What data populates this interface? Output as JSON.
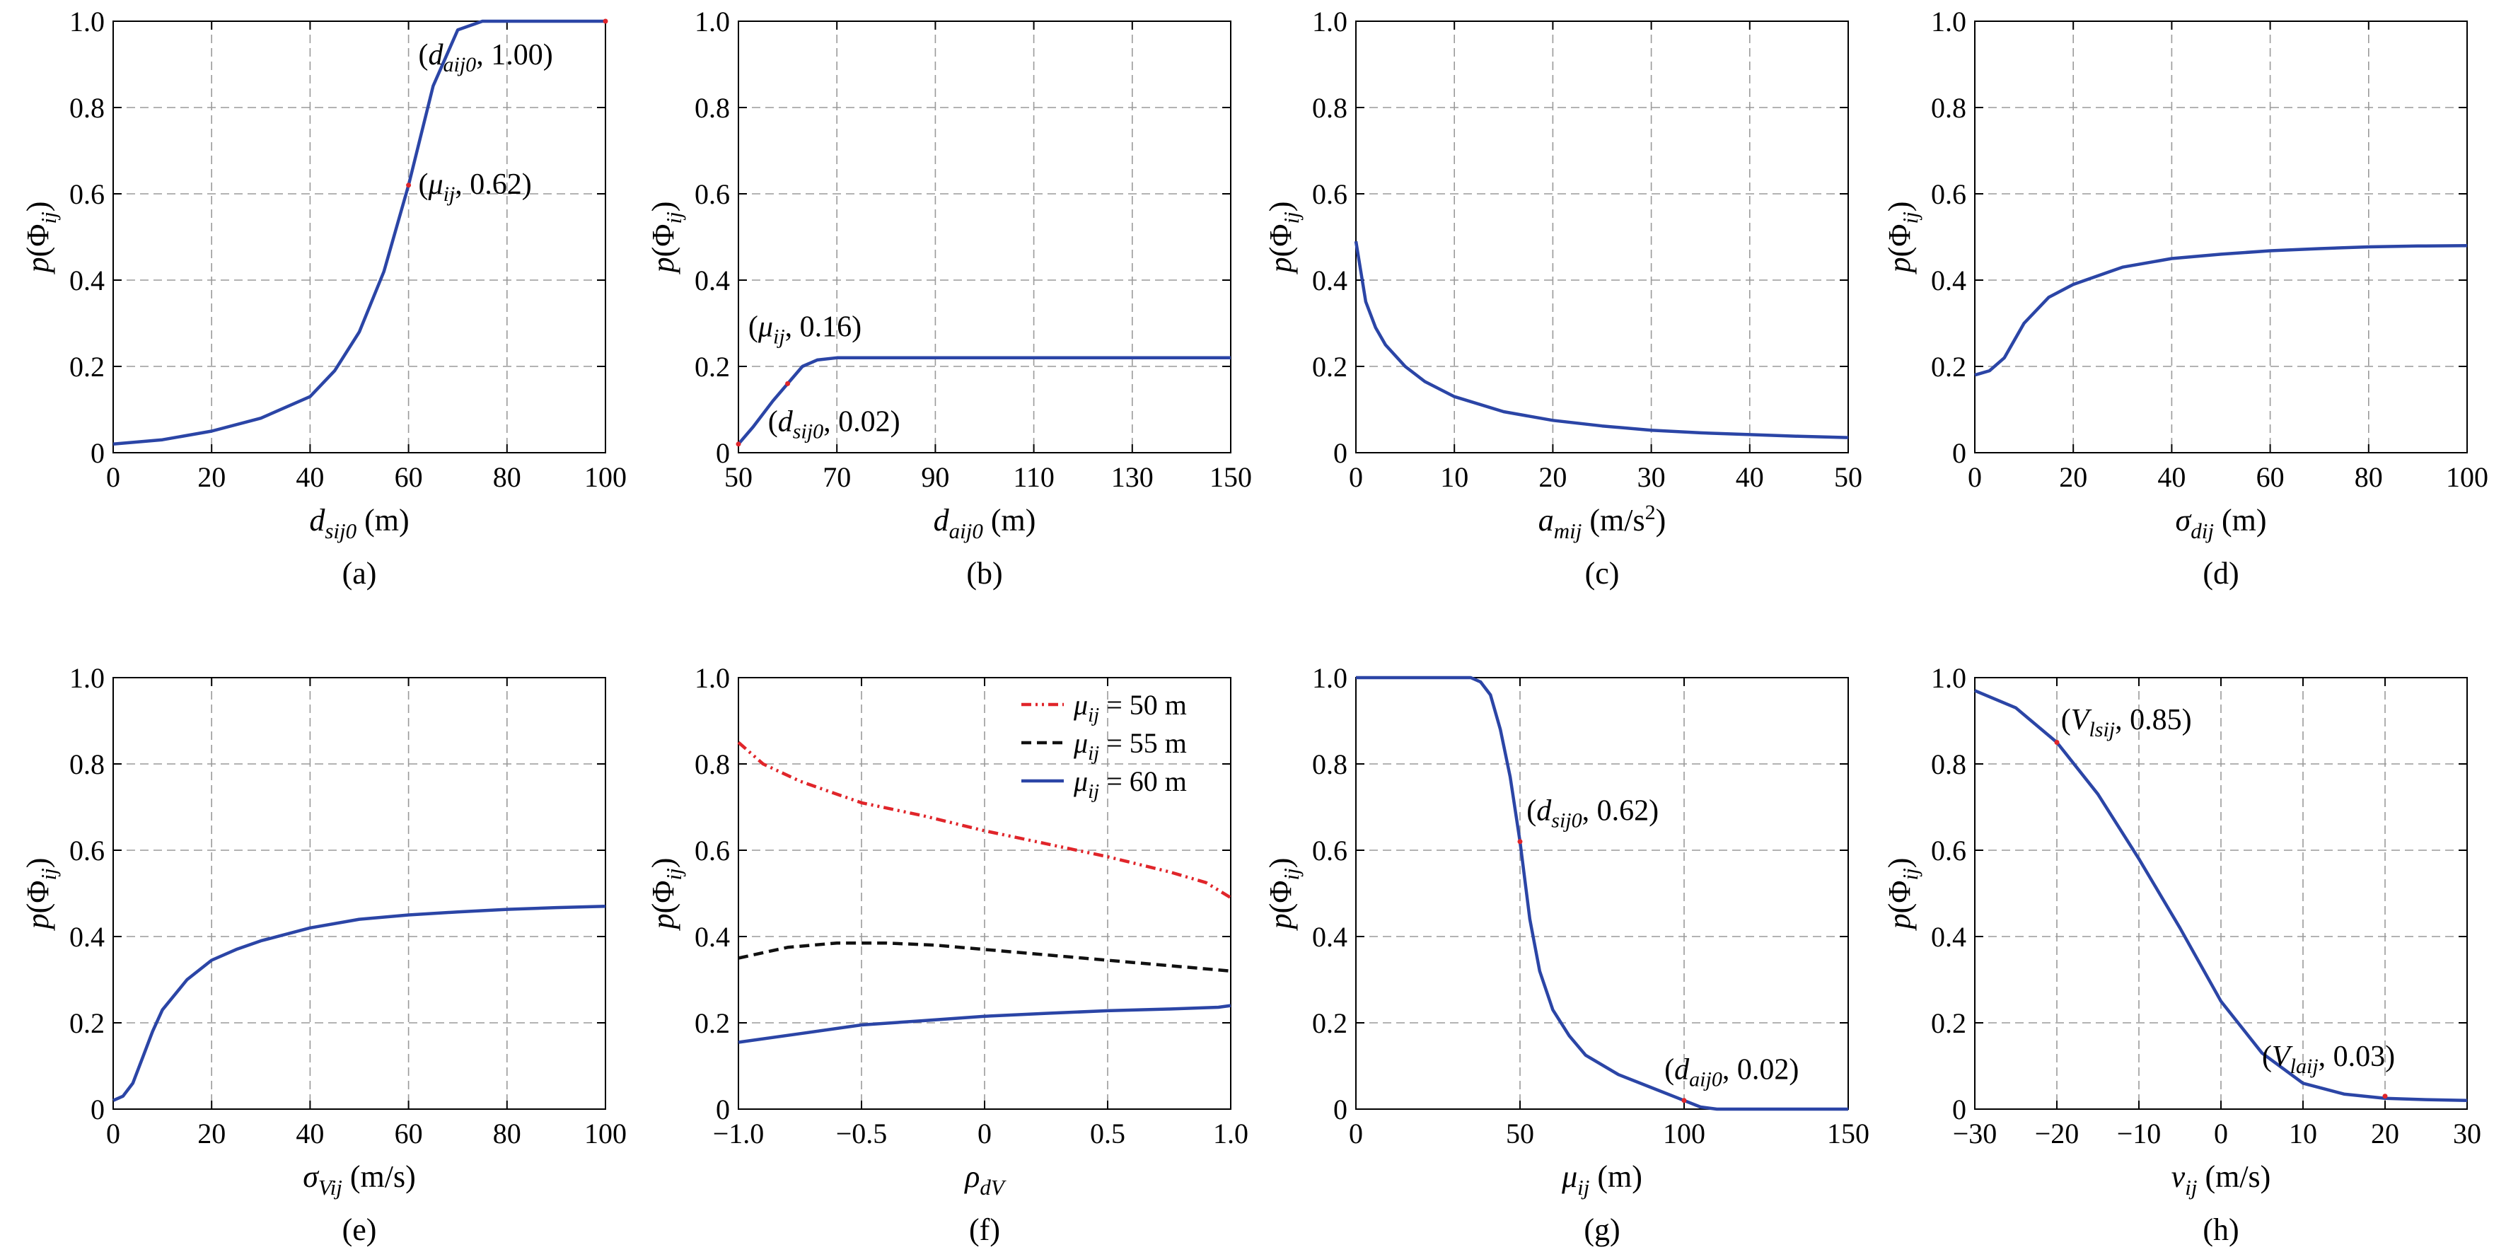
{
  "panels": [
    {
      "id": "a",
      "caption": "(a)",
      "ylabel": {
        "base": "p",
        "paren_open": "(Φ",
        "sub": "ij",
        "paren_close": ")"
      },
      "xlabel": {
        "base": "d",
        "sub": "sij0",
        "unit": " (m)"
      },
      "xlim": [
        0,
        100
      ],
      "ylim": [
        0,
        1
      ],
      "xticks": [
        0,
        20,
        40,
        60,
        80,
        100
      ],
      "xtick_labels": [
        "0",
        "20",
        "40",
        "60",
        "80",
        "100"
      ],
      "yticks": [
        0,
        0.2,
        0.4,
        0.6,
        0.8,
        1.0
      ],
      "ytick_labels": [
        "0",
        "0.2",
        "0.4",
        "0.6",
        "0.8",
        "1.0"
      ],
      "series": [
        {
          "color": "#2b45a6",
          "dash": "",
          "points": [
            [
              0,
              0.02
            ],
            [
              10,
              0.03
            ],
            [
              20,
              0.05
            ],
            [
              30,
              0.08
            ],
            [
              40,
              0.13
            ],
            [
              45,
              0.19
            ],
            [
              50,
              0.28
            ],
            [
              55,
              0.42
            ],
            [
              60,
              0.62
            ],
            [
              65,
              0.85
            ],
            [
              70,
              0.98
            ],
            [
              75,
              1.0
            ],
            [
              100,
              1.0
            ]
          ]
        }
      ],
      "markers": [
        [
          60,
          0.62
        ],
        [
          100,
          1.0
        ]
      ],
      "annotations": [
        {
          "pre": "(",
          "sym": "d",
          "sub": "aij0",
          "post": ", 1.00)",
          "at": [
            62,
            0.9
          ]
        },
        {
          "pre": "(",
          "sym": "μ",
          "sub": "ij",
          "post": ", 0.62)",
          "at": [
            62,
            0.6
          ]
        }
      ]
    },
    {
      "id": "b",
      "caption": "(b)",
      "ylabel": {
        "base": "p",
        "paren_open": "(Φ",
        "sub": "ij",
        "paren_close": ")"
      },
      "xlabel": {
        "base": "d",
        "sub": "aij0",
        "unit": " (m)"
      },
      "xlim": [
        50,
        150
      ],
      "ylim": [
        0,
        1
      ],
      "xticks": [
        50,
        70,
        90,
        110,
        130,
        150
      ],
      "xtick_labels": [
        "50",
        "70",
        "90",
        "110",
        "130",
        "150"
      ],
      "yticks": [
        0,
        0.2,
        0.4,
        0.6,
        0.8,
        1.0
      ],
      "ytick_labels": [
        "0",
        "0.2",
        "0.4",
        "0.6",
        "0.8",
        "1.0"
      ],
      "series": [
        {
          "color": "#2b45a6",
          "dash": "",
          "points": [
            [
              50,
              0.02
            ],
            [
              53,
              0.06
            ],
            [
              57,
              0.12
            ],
            [
              60,
              0.16
            ],
            [
              63,
              0.2
            ],
            [
              66,
              0.215
            ],
            [
              70,
              0.22
            ],
            [
              150,
              0.22
            ]
          ]
        }
      ],
      "markers": [
        [
          50,
          0.02
        ],
        [
          60,
          0.16
        ]
      ],
      "annotations": [
        {
          "pre": "(",
          "sym": "μ",
          "sub": "ij",
          "post": ", 0.16)",
          "at": [
            52,
            0.27
          ]
        },
        {
          "pre": "(",
          "sym": "d",
          "sub": "sij0",
          "post": ", 0.02)",
          "at": [
            56,
            0.05
          ]
        }
      ]
    },
    {
      "id": "c",
      "caption": "(c)",
      "ylabel": {
        "base": "p",
        "paren_open": "(Φ",
        "sub": "ij",
        "paren_close": ")"
      },
      "xlabel": {
        "base": "a",
        "sub": "mij",
        "unit": " (m/s",
        "sup": "2",
        "unit_close": ")"
      },
      "xlim": [
        0,
        50
      ],
      "ylim": [
        0,
        1
      ],
      "xticks": [
        0,
        10,
        20,
        30,
        40,
        50
      ],
      "xtick_labels": [
        "0",
        "10",
        "20",
        "30",
        "40",
        "50"
      ],
      "yticks": [
        0,
        0.2,
        0.4,
        0.6,
        0.8,
        1.0
      ],
      "ytick_labels": [
        "0",
        "0.2",
        "0.4",
        "0.6",
        "0.8",
        "1.0"
      ],
      "series": [
        {
          "color": "#2b45a6",
          "dash": "",
          "points": [
            [
              0,
              0.49
            ],
            [
              1,
              0.35
            ],
            [
              2,
              0.29
            ],
            [
              3,
              0.25
            ],
            [
              5,
              0.2
            ],
            [
              7,
              0.165
            ],
            [
              10,
              0.13
            ],
            [
              15,
              0.095
            ],
            [
              20,
              0.075
            ],
            [
              25,
              0.062
            ],
            [
              30,
              0.052
            ],
            [
              35,
              0.046
            ],
            [
              40,
              0.042
            ],
            [
              45,
              0.038
            ],
            [
              50,
              0.035
            ]
          ]
        }
      ],
      "markers": [],
      "annotations": []
    },
    {
      "id": "d",
      "caption": "(d)",
      "ylabel": {
        "base": "p",
        "paren_open": "(Φ",
        "sub": "ij",
        "paren_close": ")"
      },
      "xlabel": {
        "base": "σ",
        "sub": "dij",
        "unit": " (m)"
      },
      "xlim": [
        0,
        100
      ],
      "ylim": [
        0,
        1
      ],
      "xticks": [
        0,
        20,
        40,
        60,
        80,
        100
      ],
      "xtick_labels": [
        "0",
        "20",
        "40",
        "60",
        "80",
        "100"
      ],
      "yticks": [
        0,
        0.2,
        0.4,
        0.6,
        0.8,
        1.0
      ],
      "ytick_labels": [
        "0",
        "0.2",
        "0.4",
        "0.6",
        "0.8",
        "1.0"
      ],
      "series": [
        {
          "color": "#2b45a6",
          "dash": "",
          "points": [
            [
              0,
              0.18
            ],
            [
              3,
              0.19
            ],
            [
              6,
              0.22
            ],
            [
              10,
              0.3
            ],
            [
              15,
              0.36
            ],
            [
              20,
              0.39
            ],
            [
              30,
              0.43
            ],
            [
              40,
              0.45
            ],
            [
              50,
              0.46
            ],
            [
              60,
              0.468
            ],
            [
              70,
              0.473
            ],
            [
              80,
              0.477
            ],
            [
              90,
              0.479
            ],
            [
              100,
              0.48
            ]
          ]
        }
      ],
      "markers": [],
      "annotations": []
    },
    {
      "id": "e",
      "caption": "(e)",
      "ylabel": {
        "base": "p",
        "paren_open": "(Φ",
        "sub": "ij",
        "paren_close": ")"
      },
      "xlabel": {
        "base": "σ",
        "sub": "Vij",
        "unit": " (m/s)"
      },
      "xlim": [
        0,
        100
      ],
      "ylim": [
        0,
        1
      ],
      "xticks": [
        0,
        20,
        40,
        60,
        80,
        100
      ],
      "xtick_labels": [
        "0",
        "20",
        "40",
        "60",
        "80",
        "100"
      ],
      "yticks": [
        0,
        0.2,
        0.4,
        0.6,
        0.8,
        1.0
      ],
      "ytick_labels": [
        "0",
        "0.2",
        "0.4",
        "0.6",
        "0.8",
        "1.0"
      ],
      "series": [
        {
          "color": "#2b45a6",
          "dash": "",
          "points": [
            [
              0,
              0.02
            ],
            [
              2,
              0.03
            ],
            [
              4,
              0.06
            ],
            [
              6,
              0.12
            ],
            [
              8,
              0.18
            ],
            [
              10,
              0.23
            ],
            [
              15,
              0.3
            ],
            [
              20,
              0.345
            ],
            [
              25,
              0.37
            ],
            [
              30,
              0.39
            ],
            [
              40,
              0.42
            ],
            [
              50,
              0.44
            ],
            [
              60,
              0.45
            ],
            [
              70,
              0.457
            ],
            [
              80,
              0.463
            ],
            [
              90,
              0.467
            ],
            [
              100,
              0.47
            ]
          ]
        }
      ],
      "markers": [],
      "annotations": []
    },
    {
      "id": "f",
      "caption": "(f)",
      "ylabel": {
        "base": "p",
        "paren_open": "(Φ",
        "sub": "ij",
        "paren_close": ")"
      },
      "xlabel": {
        "base": "ρ",
        "sub": "dV",
        "unit": ""
      },
      "xlim": [
        -1,
        1
      ],
      "ylim": [
        0,
        1
      ],
      "xticks": [
        -1,
        -0.5,
        0,
        0.5,
        1
      ],
      "xtick_labels": [
        "−1.0",
        "−0.5",
        "0",
        "0.5",
        "1.0"
      ],
      "yticks": [
        0,
        0.2,
        0.4,
        0.6,
        0.8,
        1.0
      ],
      "ytick_labels": [
        "0",
        "0.2",
        "0.4",
        "0.6",
        "0.8",
        "1.0"
      ],
      "series": [
        {
          "color": "#e0252a",
          "dash": "14,6,3,6,3,6",
          "points": [
            [
              -1,
              0.85
            ],
            [
              -0.9,
              0.8
            ],
            [
              -0.75,
              0.76
            ],
            [
              -0.5,
              0.71
            ],
            [
              -0.25,
              0.68
            ],
            [
              0,
              0.645
            ],
            [
              0.25,
              0.615
            ],
            [
              0.5,
              0.585
            ],
            [
              0.75,
              0.55
            ],
            [
              0.9,
              0.525
            ],
            [
              1,
              0.49
            ]
          ]
        },
        {
          "color": "#111111",
          "dash": "14,8",
          "points": [
            [
              -1,
              0.35
            ],
            [
              -0.8,
              0.375
            ],
            [
              -0.6,
              0.385
            ],
            [
              -0.4,
              0.385
            ],
            [
              -0.2,
              0.38
            ],
            [
              0,
              0.37
            ],
            [
              0.2,
              0.36
            ],
            [
              0.4,
              0.35
            ],
            [
              0.6,
              0.34
            ],
            [
              0.8,
              0.33
            ],
            [
              1,
              0.32
            ]
          ]
        },
        {
          "color": "#2b45a6",
          "dash": "",
          "points": [
            [
              -1,
              0.155
            ],
            [
              -0.75,
              0.175
            ],
            [
              -0.5,
              0.195
            ],
            [
              -0.25,
              0.205
            ],
            [
              0,
              0.215
            ],
            [
              0.25,
              0.222
            ],
            [
              0.5,
              0.228
            ],
            [
              0.75,
              0.232
            ],
            [
              0.95,
              0.236
            ],
            [
              1,
              0.24
            ]
          ]
        }
      ],
      "markers": [],
      "annotations": [],
      "legend": [
        {
          "sym": "μ",
          "sub": "ij",
          "label": " = 50 m",
          "color": "#e0252a",
          "dash": "14,6,3,6,3,6"
        },
        {
          "sym": "μ",
          "sub": "ij",
          "label": " = 55 m",
          "color": "#111111",
          "dash": "14,8"
        },
        {
          "sym": "μ",
          "sub": "ij",
          "label": " = 60 m",
          "color": "#2b45a6",
          "dash": ""
        }
      ]
    },
    {
      "id": "g",
      "caption": "(g)",
      "ylabel": {
        "base": "p",
        "paren_open": "(Φ",
        "sub": "ij",
        "paren_close": ")"
      },
      "xlabel": {
        "base": "μ",
        "sub": "ij",
        "unit": " (m)"
      },
      "xlim": [
        0,
        150
      ],
      "ylim": [
        0,
        1
      ],
      "xticks": [
        0,
        50,
        100,
        150
      ],
      "xtick_labels": [
        "0",
        "50",
        "100",
        "150"
      ],
      "yticks": [
        0,
        0.2,
        0.4,
        0.6,
        0.8,
        1.0
      ],
      "ytick_labels": [
        "0",
        "0.2",
        "0.4",
        "0.6",
        "0.8",
        "1.0"
      ],
      "series": [
        {
          "color": "#2b45a6",
          "dash": "",
          "points": [
            [
              0,
              1.0
            ],
            [
              35,
              1.0
            ],
            [
              38,
              0.99
            ],
            [
              41,
              0.96
            ],
            [
              44,
              0.88
            ],
            [
              47,
              0.77
            ],
            [
              50,
              0.62
            ],
            [
              53,
              0.44
            ],
            [
              56,
              0.32
            ],
            [
              60,
              0.23
            ],
            [
              65,
              0.17
            ],
            [
              70,
              0.125
            ],
            [
              80,
              0.08
            ],
            [
              90,
              0.05
            ],
            [
              100,
              0.02
            ],
            [
              105,
              0.005
            ],
            [
              110,
              0.0
            ],
            [
              150,
              0.0
            ]
          ]
        }
      ],
      "markers": [
        [
          50,
          0.62
        ],
        [
          100,
          0.02
        ]
      ],
      "annotations": [
        {
          "pre": "(",
          "sym": "d",
          "sub": "sij0",
          "post": ", 0.62)",
          "at": [
            52,
            0.67
          ]
        },
        {
          "pre": "(",
          "sym": "d",
          "sub": "aij0",
          "post": ", 0.02)",
          "at": [
            94,
            0.07
          ]
        }
      ]
    },
    {
      "id": "h",
      "caption": "(h)",
      "ylabel": {
        "base": "p",
        "paren_open": "(Φ",
        "sub": "ij",
        "paren_close": ")"
      },
      "xlabel": {
        "base": "v",
        "sub": "ij",
        "unit": " (m/s)"
      },
      "xlim": [
        -30,
        30
      ],
      "ylim": [
        0,
        1
      ],
      "xticks": [
        -30,
        -20,
        -10,
        0,
        10,
        20,
        30
      ],
      "xtick_labels": [
        "−30",
        "−20",
        "−10",
        "0",
        "10",
        "20",
        "30"
      ],
      "yticks": [
        0,
        0.2,
        0.4,
        0.6,
        0.8,
        1.0
      ],
      "ytick_labels": [
        "0",
        "0.2",
        "0.4",
        "0.6",
        "0.8",
        "1.0"
      ],
      "series": [
        {
          "color": "#2b45a6",
          "dash": "",
          "points": [
            [
              -30,
              0.97
            ],
            [
              -25,
              0.93
            ],
            [
              -20,
              0.85
            ],
            [
              -15,
              0.73
            ],
            [
              -10,
              0.58
            ],
            [
              -5,
              0.42
            ],
            [
              0,
              0.25
            ],
            [
              5,
              0.13
            ],
            [
              10,
              0.06
            ],
            [
              15,
              0.035
            ],
            [
              20,
              0.025
            ],
            [
              25,
              0.022
            ],
            [
              30,
              0.02
            ]
          ]
        }
      ],
      "markers": [
        [
          -20,
          0.85
        ],
        [
          20,
          0.03
        ]
      ],
      "annotations": [
        {
          "pre": "(",
          "sym": "V",
          "sub": "lsij",
          "post": ", 0.85)",
          "at": [
            -19.5,
            0.88
          ]
        },
        {
          "pre": "(",
          "sym": "V",
          "sub": "laij",
          "post": ", 0.03)",
          "at": [
            5,
            0.1
          ]
        }
      ]
    }
  ]
}
